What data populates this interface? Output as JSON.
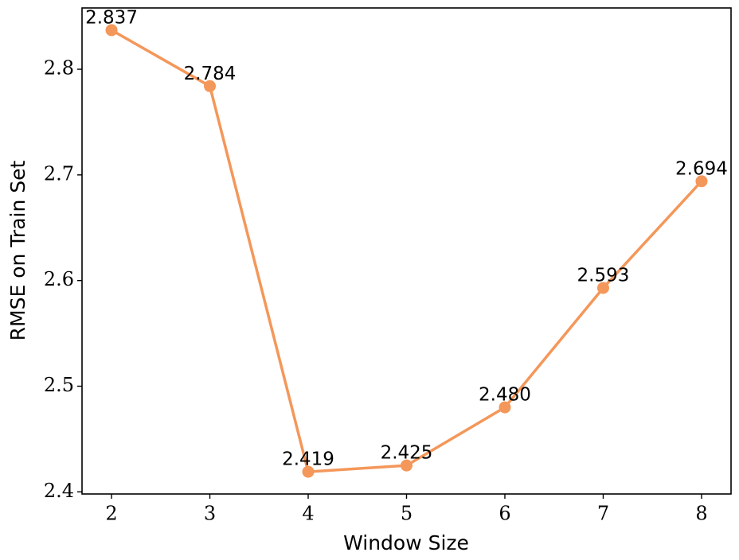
{
  "chart_data": {
    "type": "line",
    "xlabel": "Window Size",
    "ylabel": "RMSE on Train Set",
    "x": [
      2,
      3,
      4,
      5,
      6,
      7,
      8
    ],
    "series": [
      {
        "color": "#f4975a",
        "values": [
          2.837,
          2.784,
          2.419,
          2.425,
          2.48,
          2.593,
          2.694
        ],
        "value_labels": [
          "2.837",
          "2.784",
          "2.419",
          "2.425",
          "2.480",
          "2.593",
          "2.694"
        ]
      }
    ],
    "xlim": [
      1.7,
      8.3
    ],
    "xticks": [
      2,
      3,
      4,
      5,
      6,
      7,
      8
    ],
    "ylim": [
      2.398,
      2.858
    ],
    "yticks": [
      2.4,
      2.5,
      2.6,
      2.7,
      2.8
    ],
    "grid": false
  }
}
